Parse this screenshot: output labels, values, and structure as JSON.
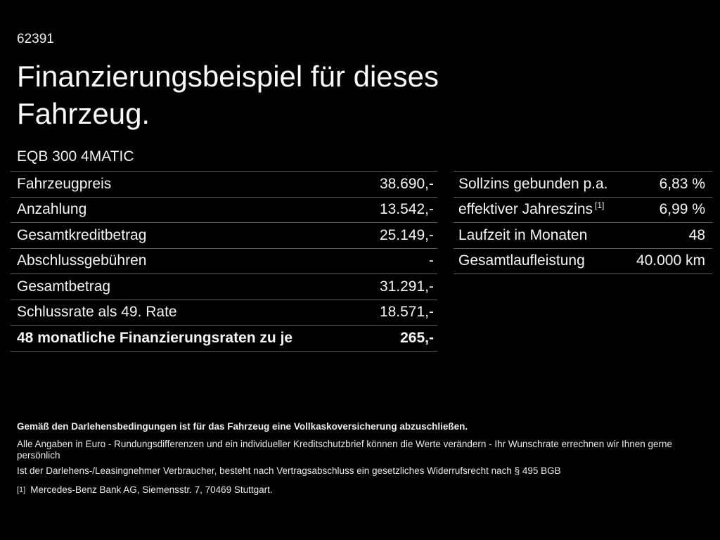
{
  "page": {
    "doc_number": "62391",
    "title_line1": "Finanzierungsbeispiel für dieses",
    "title_line2": "Fahrzeug.",
    "model": "EQB 300 4MATIC"
  },
  "colors": {
    "background": "#000000",
    "text": "#f5f5f5",
    "divider": "#5e5e5e"
  },
  "left_table": {
    "rows": [
      {
        "label": "Fahrzeugpreis",
        "value": "38.690,-"
      },
      {
        "label": "Anzahlung",
        "value": "13.542,-"
      },
      {
        "label": "Gesamtkreditbetrag",
        "value": "25.149,-"
      },
      {
        "label": "Abschlussgebühren",
        "value": "-"
      },
      {
        "label": "Gesamtbetrag",
        "value": "31.291,-"
      },
      {
        "label": "Schlussrate als 49. Rate",
        "value": "18.571,-"
      },
      {
        "label": "48 monatliche Finanzierungsraten zu je",
        "value": "265,-"
      }
    ]
  },
  "right_table": {
    "rows": [
      {
        "label": "Sollzins gebunden p.a.",
        "value": "6,83 %"
      },
      {
        "label": "effektiver Jahreszins",
        "sup": "[1]",
        "value": "6,99 %"
      },
      {
        "label": "Laufzeit in Monaten",
        "value": "48"
      },
      {
        "label": "Gesamtlaufleistung",
        "value": "40.000 km"
      }
    ]
  },
  "footer": {
    "insurance_note": "Gemäß den Darlehensbedingungen ist für das Fahrzeug eine Vollkaskoversicherung abzuschließen.",
    "disclaimer_line1": "Alle Angaben in Euro - Rundungsdifferenzen und ein individueller Kreditschutzbrief können die Werte verändern - Ihr Wunschrate errechnen wir Ihnen gerne persönlich",
    "disclaimer_line2": "Ist der Darlehens-/Leasingnehmer Verbraucher, besteht nach Vertragsabschluss ein gesetzliches Widerrufsrecht nach § 495 BGB",
    "footnote_marker": "[1]",
    "footnote_text": "Mercedes-Benz Bank AG, Siemensstr. 7, 70469 Stuttgart."
  }
}
